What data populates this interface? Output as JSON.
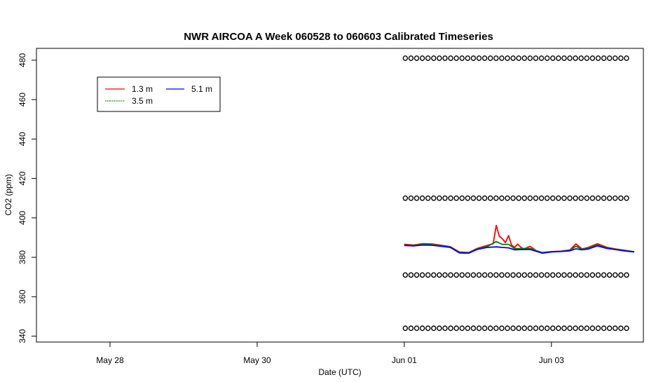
{
  "chart_data": {
    "type": "line",
    "title": "NWR AIRCOA A  Week 060528 to 060603  Calibrated Timeseries",
    "xlabel": "Date (UTC)",
    "ylabel": "CO2 (ppm)",
    "xlim": [
      "2006-05-27T00:00",
      "2006-06-04T06:00"
    ],
    "ylim": [
      337,
      486
    ],
    "grid": false,
    "legend_position": "top-left",
    "x_ticks": [
      {
        "label": "May 28",
        "x": "2006-05-28T00:00"
      },
      {
        "label": "May 30",
        "x": "2006-05-30T00:00"
      },
      {
        "label": "Jun 01",
        "x": "2006-06-01T00:00"
      },
      {
        "label": "Jun 03",
        "x": "2006-06-03T00:00"
      }
    ],
    "y_ticks": [
      340,
      360,
      380,
      400,
      420,
      440,
      460,
      480
    ],
    "series": [
      {
        "name": "1.3 m",
        "color": "#ff0000",
        "points": [
          [
            "2006-06-01T00:00",
            386.6
          ],
          [
            "2006-06-01T03:00",
            386.2
          ],
          [
            "2006-06-01T06:00",
            386.9
          ],
          [
            "2006-06-01T09:00",
            386.8
          ],
          [
            "2006-06-01T12:00",
            386.1
          ],
          [
            "2006-06-01T15:00",
            385.4
          ],
          [
            "2006-06-01T18:00",
            382.7
          ],
          [
            "2006-06-01T21:00",
            382.4
          ],
          [
            "2006-06-02T00:00",
            384.6
          ],
          [
            "2006-06-02T03:00",
            386.0
          ],
          [
            "2006-06-02T05:00",
            386.9
          ],
          [
            "2006-06-02T06:00",
            396.2
          ],
          [
            "2006-06-02T07:00",
            390.7
          ],
          [
            "2006-06-02T08:00",
            389.4
          ],
          [
            "2006-06-02T09:00",
            387.5
          ],
          [
            "2006-06-02T10:00",
            391.0
          ],
          [
            "2006-06-02T11:00",
            386.2
          ],
          [
            "2006-06-02T12:00",
            385.0
          ],
          [
            "2006-06-02T13:00",
            386.7
          ],
          [
            "2006-06-02T14:00",
            385.1
          ],
          [
            "2006-06-02T15:00",
            384.2
          ],
          [
            "2006-06-02T17:00",
            385.6
          ],
          [
            "2006-06-02T19:00",
            383.4
          ],
          [
            "2006-06-02T21:00",
            382.4
          ],
          [
            "2006-06-03T00:00",
            382.9
          ],
          [
            "2006-06-03T03:00",
            383.1
          ],
          [
            "2006-06-03T06:00",
            383.7
          ],
          [
            "2006-06-03T08:00",
            386.8
          ],
          [
            "2006-06-03T10:00",
            384.2
          ],
          [
            "2006-06-03T12:00",
            385.0
          ],
          [
            "2006-06-03T15:00",
            386.9
          ],
          [
            "2006-06-03T18:00",
            385.1
          ],
          [
            "2006-06-03T21:00",
            384.2
          ],
          [
            "2006-06-04T00:00",
            383.5
          ],
          [
            "2006-06-04T03:00",
            382.8
          ]
        ]
      },
      {
        "name": "3.5 m",
        "color": "#008000",
        "points": [
          [
            "2006-06-01T00:00",
            386.2
          ],
          [
            "2006-06-01T03:00",
            386.0
          ],
          [
            "2006-06-01T06:00",
            386.5
          ],
          [
            "2006-06-01T09:00",
            386.4
          ],
          [
            "2006-06-01T12:00",
            385.9
          ],
          [
            "2006-06-01T15:00",
            385.2
          ],
          [
            "2006-06-01T18:00",
            382.5
          ],
          [
            "2006-06-01T21:00",
            382.3
          ],
          [
            "2006-06-02T00:00",
            384.3
          ],
          [
            "2006-06-02T03:00",
            385.4
          ],
          [
            "2006-06-02T06:00",
            388.0
          ],
          [
            "2006-06-02T08:00",
            386.5
          ],
          [
            "2006-06-02T10:00",
            386.6
          ],
          [
            "2006-06-02T12:00",
            384.4
          ],
          [
            "2006-06-02T14:00",
            384.4
          ],
          [
            "2006-06-02T17:00",
            384.5
          ],
          [
            "2006-06-02T21:00",
            382.3
          ],
          [
            "2006-06-03T00:00",
            382.8
          ],
          [
            "2006-06-03T03:00",
            383.0
          ],
          [
            "2006-06-03T06:00",
            383.5
          ],
          [
            "2006-06-03T08:00",
            385.6
          ],
          [
            "2006-06-03T10:00",
            384.0
          ],
          [
            "2006-06-03T12:00",
            384.6
          ],
          [
            "2006-06-03T15:00",
            386.3
          ],
          [
            "2006-06-03T18:00",
            384.8
          ],
          [
            "2006-06-03T21:00",
            384.0
          ],
          [
            "2006-06-04T00:00",
            383.3
          ],
          [
            "2006-06-04T03:00",
            382.8
          ]
        ]
      },
      {
        "name": "5.1 m",
        "color": "#0000ff",
        "points": [
          [
            "2006-06-01T00:00",
            386.0
          ],
          [
            "2006-06-01T03:00",
            385.8
          ],
          [
            "2006-06-01T06:00",
            386.2
          ],
          [
            "2006-06-01T09:00",
            386.1
          ],
          [
            "2006-06-01T12:00",
            385.6
          ],
          [
            "2006-06-01T15:00",
            385.0
          ],
          [
            "2006-06-01T18:00",
            382.2
          ],
          [
            "2006-06-01T21:00",
            382.1
          ],
          [
            "2006-06-02T00:00",
            384.1
          ],
          [
            "2006-06-02T03:00",
            385.0
          ],
          [
            "2006-06-02T06:00",
            385.3
          ],
          [
            "2006-06-02T08:00",
            385.0
          ],
          [
            "2006-06-02T10:00",
            384.8
          ],
          [
            "2006-06-02T12:00",
            383.8
          ],
          [
            "2006-06-02T14:00",
            383.9
          ],
          [
            "2006-06-02T17:00",
            384.0
          ],
          [
            "2006-06-02T21:00",
            382.1
          ],
          [
            "2006-06-03T00:00",
            382.7
          ],
          [
            "2006-06-03T03:00",
            382.9
          ],
          [
            "2006-06-03T06:00",
            383.3
          ],
          [
            "2006-06-03T08:00",
            384.3
          ],
          [
            "2006-06-03T10:00",
            383.8
          ],
          [
            "2006-06-03T12:00",
            384.2
          ],
          [
            "2006-06-03T15:00",
            385.8
          ],
          [
            "2006-06-03T18:00",
            384.5
          ],
          [
            "2006-06-03T21:00",
            383.9
          ],
          [
            "2006-06-04T00:00",
            383.2
          ],
          [
            "2006-06-04T03:00",
            382.7
          ]
        ]
      }
    ],
    "reference_points": {
      "marker": "open circle",
      "x_range": [
        "2006-06-01T00:20",
        "2006-06-04T00:30"
      ],
      "levels": [
        481,
        410,
        371,
        344
      ],
      "count_per_level": 40
    }
  }
}
